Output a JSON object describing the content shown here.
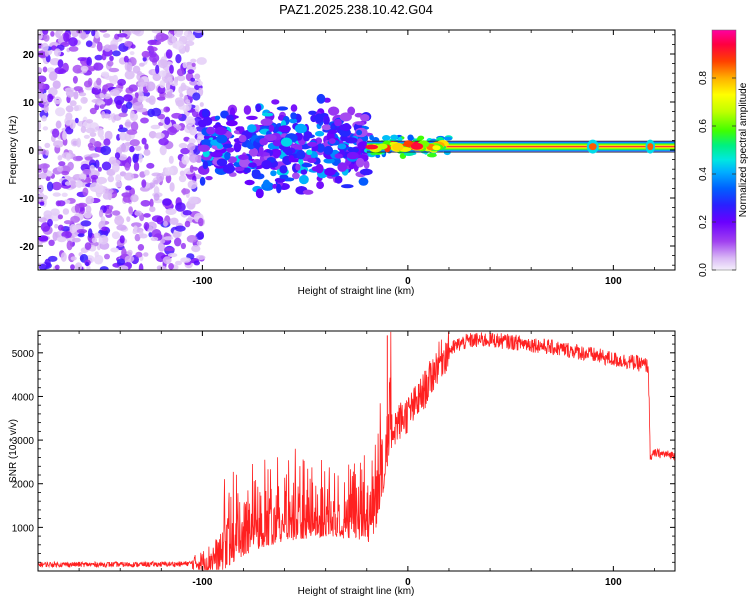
{
  "title": "PAZ1.2025.238.10.42.G04",
  "chart_data": [
    {
      "type": "heatmap",
      "name": "spectrogram",
      "xlabel": "Height of straight line (km)",
      "ylabel": "Frequency (Hz)",
      "xlim": [
        -180,
        130
      ],
      "ylim": [
        -25,
        25
      ],
      "xticks": [
        -100,
        0,
        100
      ],
      "yticks": [
        -20,
        -10,
        0,
        10,
        20
      ],
      "colorbar": {
        "label": "Normalized spectral amplitude",
        "range": [
          0,
          1
        ],
        "ticks": [
          "0.0",
          "0.2",
          "0.4",
          "0.6",
          "0.8"
        ],
        "colors": [
          "#f5f0fb",
          "#d9b8f5",
          "#a040f0",
          "#6a00ff",
          "#2a20ff",
          "#0060ff",
          "#00b0ff",
          "#00e8e0",
          "#00f080",
          "#40ff00",
          "#c0ff00",
          "#ffff00",
          "#ffb000",
          "#ff4000",
          "#ff0040",
          "#ff00a0"
        ]
      },
      "regions": [
        {
          "label": "noise",
          "x_range": [
            -180,
            -100
          ],
          "freq_range": [
            -25,
            25
          ],
          "amplitude": 0.1
        },
        {
          "label": "transition",
          "x_range": [
            -100,
            -20
          ],
          "freq_range": [
            -8,
            10
          ],
          "amplitude": 0.3
        },
        {
          "label": "tone",
          "x_range": [
            -20,
            130
          ],
          "freq_center": 0.7,
          "amplitude": 0.95
        }
      ]
    },
    {
      "type": "line",
      "name": "snr",
      "xlabel": "Height of straight line (km)",
      "ylabel": "SNR (10 * v/v)",
      "xlim": [
        -180,
        130
      ],
      "ylim": [
        0,
        5500
      ],
      "xticks": [
        -100,
        0,
        100
      ],
      "yticks": [
        1000,
        2000,
        3000,
        4000,
        5000
      ],
      "series": [
        {
          "name": "SNR",
          "color": "#ff2020",
          "x": [
            -180,
            -130,
            -110,
            -100,
            -90,
            -80,
            -70,
            -60,
            -50,
            -40,
            -30,
            -20,
            -15,
            -12,
            -10,
            -5,
            0,
            5,
            10,
            15,
            20,
            25,
            30,
            40,
            50,
            60,
            70,
            80,
            90,
            100,
            110,
            117,
            118,
            120,
            130
          ],
          "y": [
            150,
            150,
            160,
            200,
            380,
            700,
            900,
            1050,
            1100,
            1150,
            1100,
            1050,
            1500,
            2200,
            3100,
            3400,
            3600,
            3900,
            4300,
            4800,
            5050,
            5200,
            5280,
            5300,
            5250,
            5200,
            5120,
            5050,
            4950,
            4850,
            4780,
            4700,
            2600,
            2700,
            2650
          ]
        }
      ]
    }
  ]
}
